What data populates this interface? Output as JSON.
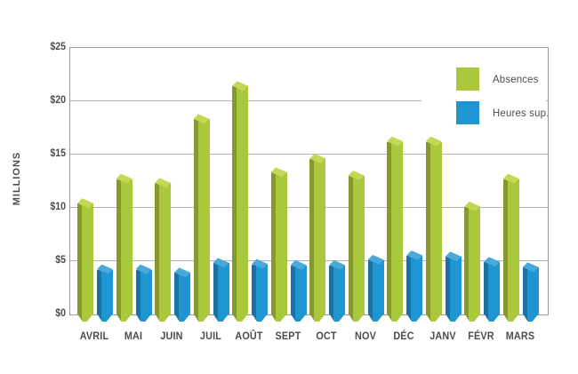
{
  "chart_data": {
    "type": "bar",
    "title": "",
    "ylabel": "MILLIONS",
    "ylim": [
      0,
      25
    ],
    "ytick_step": 5,
    "yticks": [
      "$0",
      "$5",
      "$10",
      "$15",
      "$20",
      "$25"
    ],
    "categories": [
      "AVRIL",
      "MAI",
      "JUIN",
      "JUIL",
      "AOÛT",
      "SEPT",
      "OCT",
      "NOV",
      "DÉC",
      "JANV",
      "FÉVR",
      "MARS"
    ],
    "series": [
      {
        "name": "Absences",
        "color": "#a9c83c",
        "color_dark": "#87992e",
        "color_light": "#c3d855",
        "values": [
          10.4,
          12.7,
          12.3,
          18.3,
          21.4,
          13.3,
          14.6,
          13.0,
          16.2,
          16.2,
          10.1,
          12.7
        ]
      },
      {
        "name": "Heures sup.",
        "color": "#1f95d1",
        "color_dark": "#19729f",
        "color_light": "#48a9da",
        "values": [
          4.2,
          4.2,
          3.9,
          4.8,
          4.7,
          4.6,
          4.6,
          5.1,
          5.5,
          5.4,
          4.9,
          4.4
        ]
      }
    ],
    "legend_position": "top-right",
    "grid": true,
    "axis_color": "#9a9a9a",
    "grid_color": "#b3b3b3",
    "text_color": "#4c4c4c"
  }
}
